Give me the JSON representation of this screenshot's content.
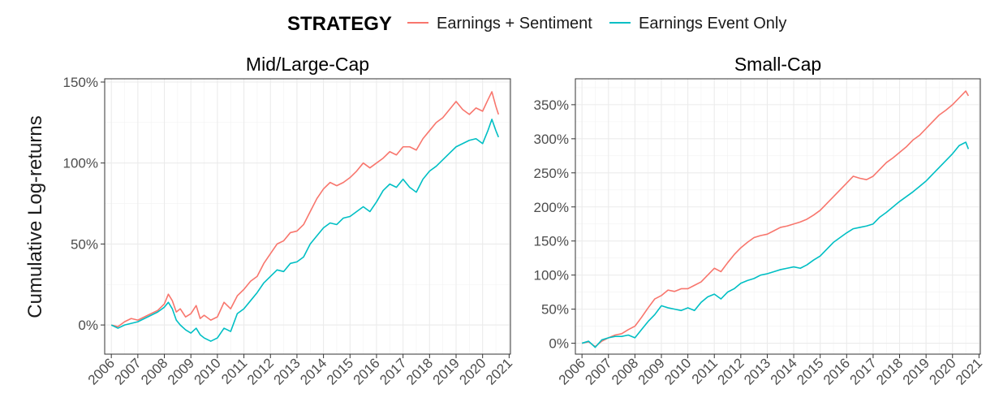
{
  "legend": {
    "title": "STRATEGY",
    "items": [
      {
        "label": "Earnings + Sentiment",
        "color": "#F8766D"
      },
      {
        "label": "Earnings Event Only",
        "color": "#00BFC4"
      }
    ]
  },
  "ylabel": "Cumulative Log-returns",
  "chart_data": [
    {
      "type": "line",
      "title": "Mid/Large-Cap",
      "xlabel": "",
      "ylabel": "Cumulative Log-returns",
      "xlim": [
        2005.75,
        2021.05
      ],
      "ylim": [
        -0.18,
        1.52
      ],
      "x_ticks": [
        2006,
        2007,
        2008,
        2009,
        2010,
        2011,
        2012,
        2013,
        2014,
        2015,
        2016,
        2017,
        2018,
        2019,
        2020,
        2021
      ],
      "y_ticks": [
        0,
        0.5,
        1.0,
        1.5
      ],
      "y_tick_labels": [
        "0%",
        "50%",
        "100%",
        "150%"
      ],
      "grid": true,
      "series": [
        {
          "name": "Earnings + Sentiment",
          "color": "#F8766D",
          "x": [
            2006.0,
            2006.25,
            2006.5,
            2006.75,
            2007.0,
            2007.25,
            2007.5,
            2007.75,
            2008.0,
            2008.15,
            2008.3,
            2008.45,
            2008.6,
            2008.8,
            2009.0,
            2009.2,
            2009.35,
            2009.5,
            2009.75,
            2010.0,
            2010.25,
            2010.5,
            2010.75,
            2011.0,
            2011.25,
            2011.5,
            2011.75,
            2012.0,
            2012.25,
            2012.5,
            2012.75,
            2013.0,
            2013.25,
            2013.5,
            2013.75,
            2014.0,
            2014.25,
            2014.5,
            2014.75,
            2015.0,
            2015.25,
            2015.5,
            2015.75,
            2016.0,
            2016.25,
            2016.5,
            2016.75,
            2017.0,
            2017.25,
            2017.5,
            2017.75,
            2018.0,
            2018.25,
            2018.5,
            2018.75,
            2019.0,
            2019.25,
            2019.5,
            2019.75,
            2020.0,
            2020.2,
            2020.35,
            2020.5,
            2020.6
          ],
          "values": [
            0.0,
            -0.01,
            0.02,
            0.04,
            0.03,
            0.05,
            0.07,
            0.09,
            0.13,
            0.19,
            0.15,
            0.08,
            0.1,
            0.05,
            0.07,
            0.12,
            0.04,
            0.06,
            0.03,
            0.05,
            0.14,
            0.1,
            0.18,
            0.22,
            0.27,
            0.3,
            0.38,
            0.44,
            0.5,
            0.52,
            0.57,
            0.58,
            0.62,
            0.7,
            0.78,
            0.84,
            0.88,
            0.86,
            0.88,
            0.91,
            0.95,
            1.0,
            0.97,
            1.0,
            1.03,
            1.07,
            1.05,
            1.1,
            1.1,
            1.08,
            1.15,
            1.2,
            1.25,
            1.28,
            1.33,
            1.38,
            1.33,
            1.3,
            1.34,
            1.32,
            1.39,
            1.44,
            1.35,
            1.3
          ]
        },
        {
          "name": "Earnings Event Only",
          "color": "#00BFC4",
          "x": [
            2006.0,
            2006.25,
            2006.5,
            2006.75,
            2007.0,
            2007.25,
            2007.5,
            2007.75,
            2008.0,
            2008.15,
            2008.3,
            2008.45,
            2008.6,
            2008.8,
            2009.0,
            2009.2,
            2009.35,
            2009.5,
            2009.75,
            2010.0,
            2010.25,
            2010.5,
            2010.75,
            2011.0,
            2011.25,
            2011.5,
            2011.75,
            2012.0,
            2012.25,
            2012.5,
            2012.75,
            2013.0,
            2013.25,
            2013.5,
            2013.75,
            2014.0,
            2014.25,
            2014.5,
            2014.75,
            2015.0,
            2015.25,
            2015.5,
            2015.75,
            2016.0,
            2016.25,
            2016.5,
            2016.75,
            2017.0,
            2017.25,
            2017.5,
            2017.75,
            2018.0,
            2018.25,
            2018.5,
            2018.75,
            2019.0,
            2019.25,
            2019.5,
            2019.75,
            2020.0,
            2020.2,
            2020.35,
            2020.5,
            2020.6
          ],
          "values": [
            0.0,
            -0.02,
            0.0,
            0.01,
            0.02,
            0.04,
            0.06,
            0.08,
            0.11,
            0.14,
            0.1,
            0.03,
            0.0,
            -0.03,
            -0.05,
            -0.02,
            -0.06,
            -0.08,
            -0.1,
            -0.08,
            -0.02,
            -0.04,
            0.07,
            0.1,
            0.15,
            0.2,
            0.26,
            0.3,
            0.34,
            0.33,
            0.38,
            0.39,
            0.42,
            0.5,
            0.55,
            0.6,
            0.63,
            0.62,
            0.66,
            0.67,
            0.7,
            0.73,
            0.7,
            0.76,
            0.83,
            0.87,
            0.85,
            0.9,
            0.85,
            0.82,
            0.9,
            0.95,
            0.98,
            1.02,
            1.06,
            1.1,
            1.12,
            1.14,
            1.15,
            1.12,
            1.2,
            1.27,
            1.2,
            1.16
          ]
        }
      ]
    },
    {
      "type": "line",
      "title": "Small-Cap",
      "xlabel": "",
      "ylabel": "",
      "xlim": [
        2005.75,
        2021.05
      ],
      "ylim": [
        -0.16,
        3.88
      ],
      "x_ticks": [
        2006,
        2007,
        2008,
        2009,
        2010,
        2011,
        2012,
        2013,
        2014,
        2015,
        2016,
        2017,
        2018,
        2019,
        2020,
        2021
      ],
      "y_ticks": [
        0,
        0.5,
        1.0,
        1.5,
        2.0,
        2.5,
        3.0,
        3.5
      ],
      "y_tick_labels": [
        "0%",
        "50%",
        "100%",
        "150%",
        "200%",
        "250%",
        "300%",
        "350%"
      ],
      "grid": true,
      "series": [
        {
          "name": "Earnings + Sentiment",
          "color": "#F8766D",
          "x": [
            2006.0,
            2006.25,
            2006.5,
            2006.75,
            2007.0,
            2007.25,
            2007.5,
            2007.75,
            2008.0,
            2008.25,
            2008.5,
            2008.75,
            2009.0,
            2009.25,
            2009.5,
            2009.75,
            2010.0,
            2010.25,
            2010.5,
            2010.75,
            2011.0,
            2011.25,
            2011.5,
            2011.75,
            2012.0,
            2012.25,
            2012.5,
            2012.75,
            2013.0,
            2013.25,
            2013.5,
            2013.75,
            2014.0,
            2014.25,
            2014.5,
            2014.75,
            2015.0,
            2015.25,
            2015.5,
            2015.75,
            2016.0,
            2016.25,
            2016.5,
            2016.75,
            2017.0,
            2017.25,
            2017.5,
            2017.75,
            2018.0,
            2018.25,
            2018.5,
            2018.75,
            2019.0,
            2019.25,
            2019.5,
            2019.75,
            2020.0,
            2020.25,
            2020.5,
            2020.6
          ],
          "values": [
            0.0,
            0.02,
            -0.05,
            0.03,
            0.08,
            0.12,
            0.14,
            0.2,
            0.25,
            0.38,
            0.52,
            0.65,
            0.7,
            0.78,
            0.76,
            0.8,
            0.8,
            0.85,
            0.9,
            1.0,
            1.1,
            1.05,
            1.18,
            1.3,
            1.4,
            1.48,
            1.55,
            1.58,
            1.6,
            1.65,
            1.7,
            1.72,
            1.75,
            1.78,
            1.82,
            1.88,
            1.95,
            2.05,
            2.15,
            2.25,
            2.35,
            2.45,
            2.42,
            2.4,
            2.45,
            2.55,
            2.65,
            2.72,
            2.8,
            2.88,
            2.98,
            3.05,
            3.15,
            3.25,
            3.35,
            3.42,
            3.5,
            3.6,
            3.7,
            3.63
          ]
        },
        {
          "name": "Earnings Event Only",
          "color": "#00BFC4",
          "x": [
            2006.0,
            2006.25,
            2006.5,
            2006.75,
            2007.0,
            2007.25,
            2007.5,
            2007.75,
            2008.0,
            2008.25,
            2008.5,
            2008.75,
            2009.0,
            2009.25,
            2009.5,
            2009.75,
            2010.0,
            2010.25,
            2010.5,
            2010.75,
            2011.0,
            2011.25,
            2011.5,
            2011.75,
            2012.0,
            2012.25,
            2012.5,
            2012.75,
            2013.0,
            2013.25,
            2013.5,
            2013.75,
            2014.0,
            2014.25,
            2014.5,
            2014.75,
            2015.0,
            2015.25,
            2015.5,
            2015.75,
            2016.0,
            2016.25,
            2016.5,
            2016.75,
            2017.0,
            2017.25,
            2017.5,
            2017.75,
            2018.0,
            2018.25,
            2018.5,
            2018.75,
            2019.0,
            2019.25,
            2019.5,
            2019.75,
            2020.0,
            2020.25,
            2020.5,
            2020.6
          ],
          "values": [
            0.0,
            0.03,
            -0.06,
            0.05,
            0.08,
            0.1,
            0.1,
            0.12,
            0.08,
            0.2,
            0.32,
            0.42,
            0.55,
            0.52,
            0.5,
            0.48,
            0.52,
            0.48,
            0.6,
            0.68,
            0.72,
            0.65,
            0.75,
            0.8,
            0.88,
            0.92,
            0.95,
            1.0,
            1.02,
            1.05,
            1.08,
            1.1,
            1.12,
            1.1,
            1.15,
            1.22,
            1.28,
            1.38,
            1.48,
            1.55,
            1.62,
            1.68,
            1.7,
            1.72,
            1.75,
            1.85,
            1.92,
            2.0,
            2.08,
            2.15,
            2.22,
            2.3,
            2.38,
            2.48,
            2.58,
            2.68,
            2.78,
            2.9,
            2.95,
            2.85
          ]
        }
      ]
    }
  ]
}
